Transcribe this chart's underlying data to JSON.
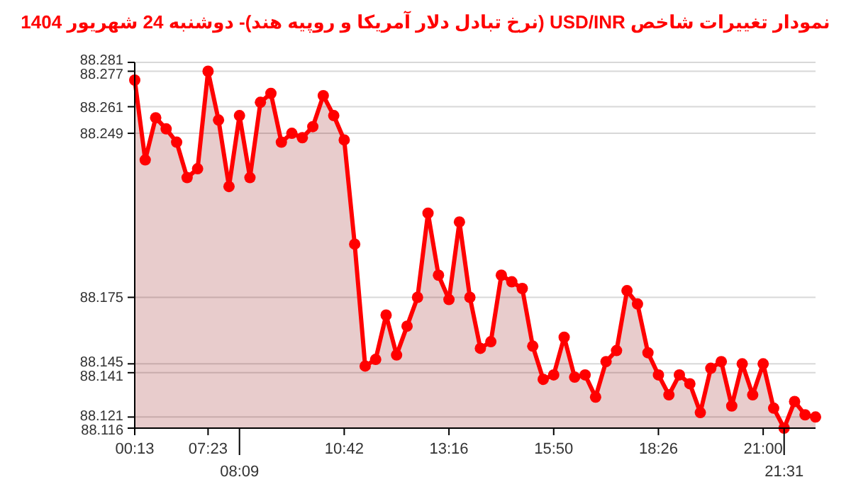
{
  "chart_data": {
    "type": "area",
    "title": "نمودار تغییرات شاخص USD/INR (نرخ تبادل دلار آمریکا و روپیه هند)- دوشنبه  24 شهریور 1404",
    "categories": [
      "00:13",
      null,
      null,
      null,
      null,
      null,
      null,
      "07:23",
      null,
      null,
      "08:09",
      null,
      null,
      null,
      null,
      null,
      null,
      null,
      null,
      null,
      "10:42",
      null,
      null,
      null,
      null,
      null,
      null,
      null,
      null,
      null,
      "13:16",
      null,
      null,
      null,
      null,
      null,
      null,
      null,
      null,
      null,
      "15:50",
      null,
      null,
      null,
      null,
      null,
      null,
      null,
      null,
      null,
      "18:26",
      null,
      null,
      null,
      null,
      null,
      null,
      null,
      null,
      null,
      "21:00",
      null,
      "21:31",
      null,
      null,
      null
    ],
    "series": [
      {
        "color": "#ff0000",
        "values": [
          88.273,
          88.237,
          88.256,
          88.251,
          88.245,
          88.229,
          88.233,
          88.277,
          88.255,
          88.225,
          88.257,
          88.229,
          88.263,
          88.267,
          88.245,
          88.249,
          88.247,
          88.252,
          88.266,
          88.257,
          88.246,
          88.199,
          88.144,
          88.147,
          88.167,
          88.149,
          88.162,
          88.175,
          88.213,
          88.185,
          88.174,
          88.209,
          88.175,
          88.152,
          88.155,
          88.185,
          88.182,
          88.179,
          88.153,
          88.138,
          88.14,
          88.157,
          88.139,
          88.14,
          88.13,
          88.146,
          88.151,
          88.178,
          88.172,
          88.15,
          88.14,
          88.131,
          88.14,
          88.136,
          88.123,
          88.143,
          88.146,
          88.126,
          88.145,
          88.131,
          88.145,
          88.125,
          88.116,
          88.128,
          88.122,
          88.121
        ]
      }
    ],
    "ylim": [
      88.116,
      88.281
    ],
    "yticks": [
      88.116,
      88.121,
      88.141,
      88.145,
      88.175,
      88.249,
      88.261,
      88.277,
      88.281
    ],
    "grid": "y",
    "marker": "circle",
    "line_style": "solid"
  }
}
